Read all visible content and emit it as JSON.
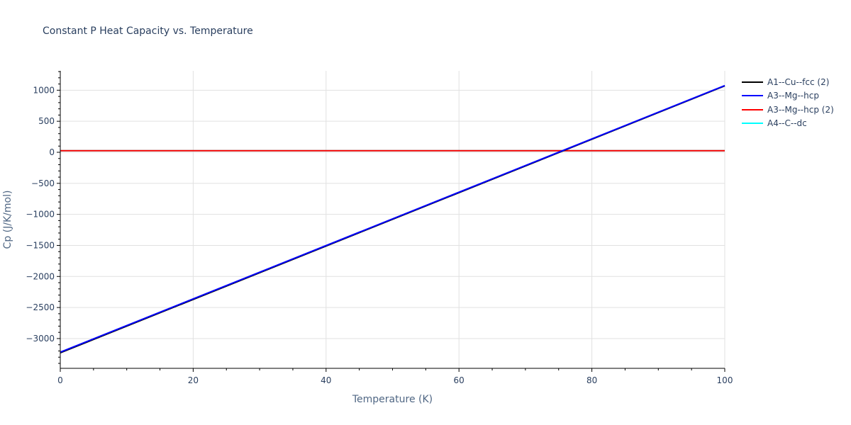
{
  "chart_data": {
    "type": "line",
    "title": "Constant P Heat Capacity vs. Temperature",
    "xlabel": "Temperature (K)",
    "ylabel": "Cp (J/K/mol)",
    "xlim": [
      0,
      100
    ],
    "ylim": [
      -3480,
      1310
    ],
    "x_ticks": [
      0,
      20,
      40,
      60,
      80,
      100
    ],
    "x_tick_labels": [
      "0",
      "20",
      "40",
      "60",
      "80",
      "100"
    ],
    "y_ticks": [
      1000,
      500,
      0,
      -500,
      -1000,
      -1500,
      -2000,
      -2500,
      -3000
    ],
    "y_tick_labels": [
      "1000",
      "500",
      "0",
      "−500",
      "−1000",
      "−1500",
      "−2000",
      "−2500",
      "−3000"
    ],
    "grid": true,
    "legend_position": "right",
    "series": [
      {
        "name": "A1--Cu--fcc (2)",
        "color": "#000000",
        "x": [
          0,
          100
        ],
        "y": [
          -3230,
          1070
        ]
      },
      {
        "name": "A3--Mg--hcp",
        "color": "#0000ff",
        "x": [
          0,
          100
        ],
        "y": [
          -3220,
          1075
        ]
      },
      {
        "name": "A3--Mg--hcp (2)",
        "color": "#ff0000",
        "x": [
          0,
          100
        ],
        "y": [
          25,
          25
        ]
      },
      {
        "name": "A4--C--dc",
        "color": "#00ffff",
        "x": [
          0,
          100
        ],
        "y": [
          25,
          25
        ]
      }
    ]
  }
}
